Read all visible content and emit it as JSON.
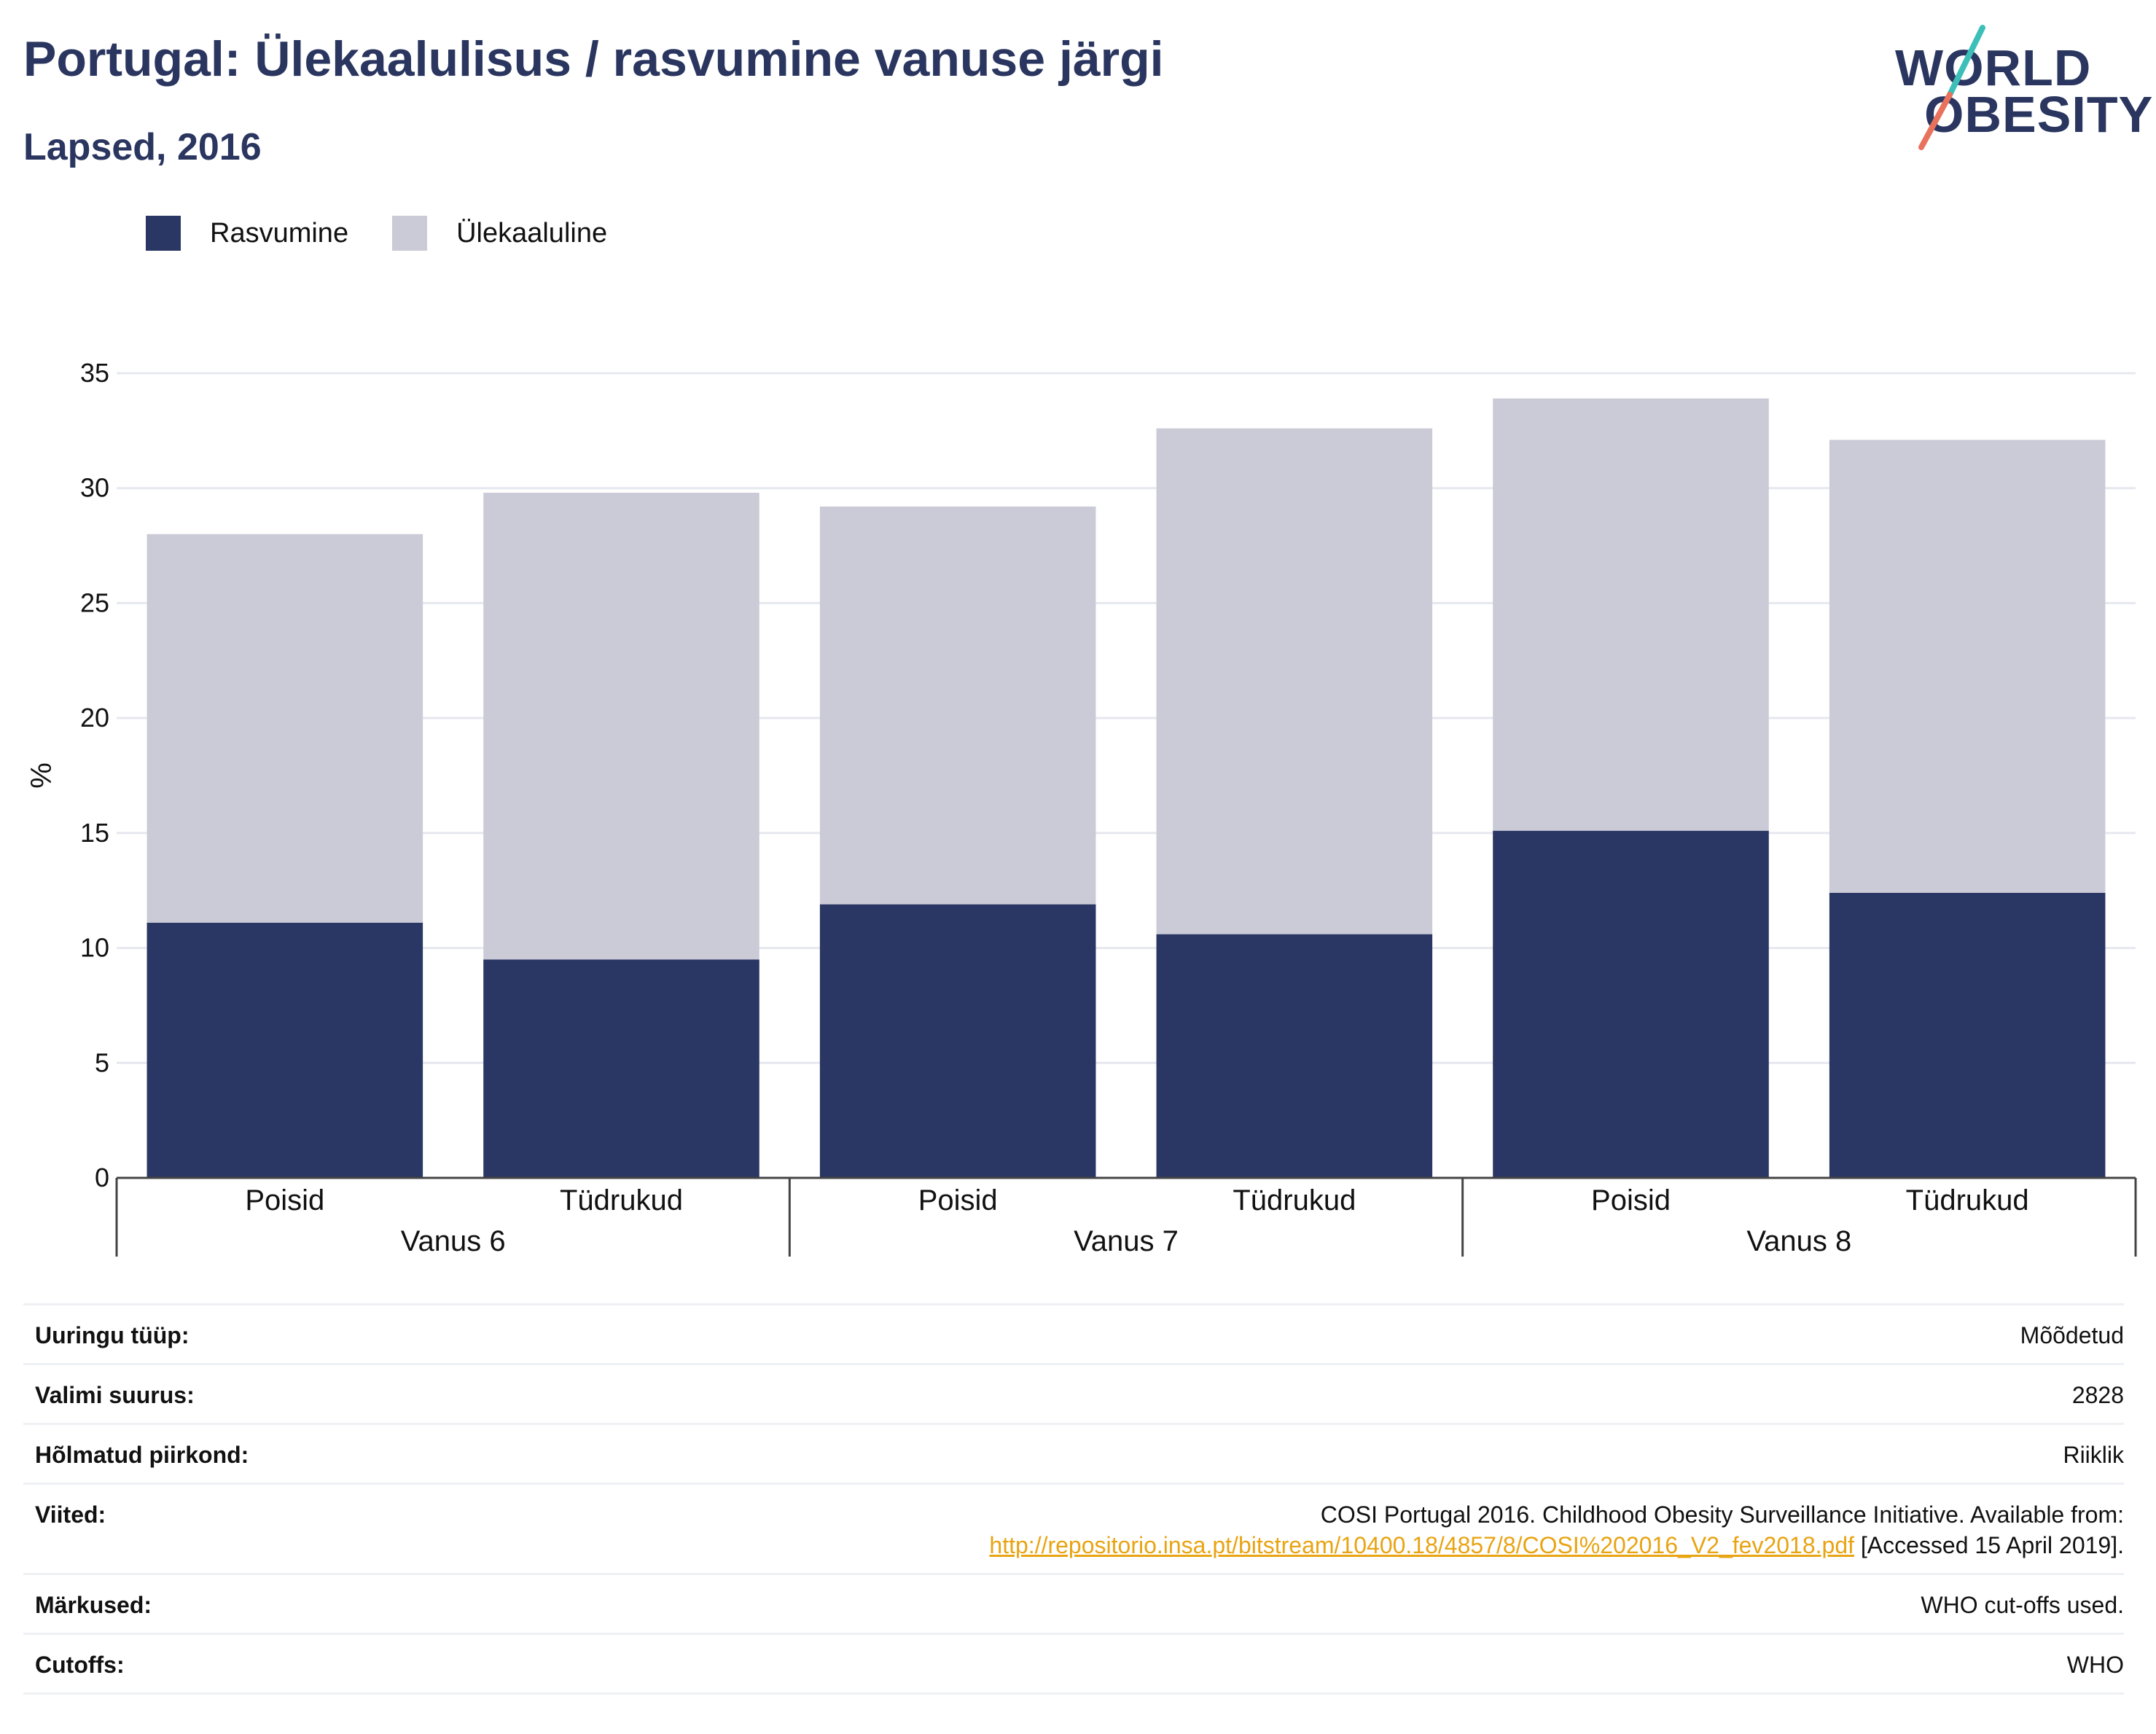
{
  "header": {
    "title": "Portugal: Ülekaalulisus / rasvumine vanuse järgi",
    "subtitle": "Lapsed, 2016"
  },
  "logo": {
    "line1": "WORLD",
    "line2": "OBESITY"
  },
  "legend": [
    {
      "label": "Rasvumine",
      "color": "#2a3663"
    },
    {
      "label": "Ülekaaluline",
      "color": "#cacbd7"
    }
  ],
  "chart_data": {
    "type": "bar",
    "stacked": true,
    "categories": [
      "Poisid",
      "Tüdrukud",
      "Poisid",
      "Tüdrukud",
      "Poisid",
      "Tüdrukud"
    ],
    "groups": [
      {
        "label": "Vanus 6",
        "categories": [
          "Poisid",
          "Tüdrukud"
        ]
      },
      {
        "label": "Vanus 7",
        "categories": [
          "Poisid",
          "Tüdrukud"
        ]
      },
      {
        "label": "Vanus 8",
        "categories": [
          "Poisid",
          "Tüdrukud"
        ]
      }
    ],
    "series": [
      {
        "name": "Rasvumine",
        "color": "#2a3663",
        "values": [
          11.1,
          9.5,
          11.9,
          10.6,
          15.1,
          12.4
        ]
      },
      {
        "name": "Ülekaaluline",
        "color": "#cacbd7",
        "values": [
          16.9,
          20.3,
          17.3,
          22.0,
          18.8,
          19.7
        ]
      }
    ],
    "ylabel": "%",
    "ylim": [
      0,
      35
    ],
    "yticks": [
      0,
      5,
      10,
      15,
      20,
      25,
      30,
      35
    ],
    "grid": true,
    "legend_position": "top-left"
  },
  "details": [
    {
      "key": "Uuringu tüüp:",
      "value": "Mõõdetud"
    },
    {
      "key": "Valimi suurus:",
      "value": "2828"
    },
    {
      "key": "Hõlmatud piirkond:",
      "value": "Riiklik"
    },
    {
      "key": "Viited:",
      "value_line1": "COSI Portugal 2016. Childhood Obesity Surveillance Initiative. Available from:",
      "link": "http://repositorio.insa.pt/bitstream/10400.18/4857/8/COSI%202016_V2_fev2018.pdf",
      "link_suffix": " [Accessed 15 April 2019]."
    },
    {
      "key": "Märkused:",
      "value": "WHO cut-offs used."
    },
    {
      "key": "Cutoffs:",
      "value": "WHO"
    }
  ]
}
